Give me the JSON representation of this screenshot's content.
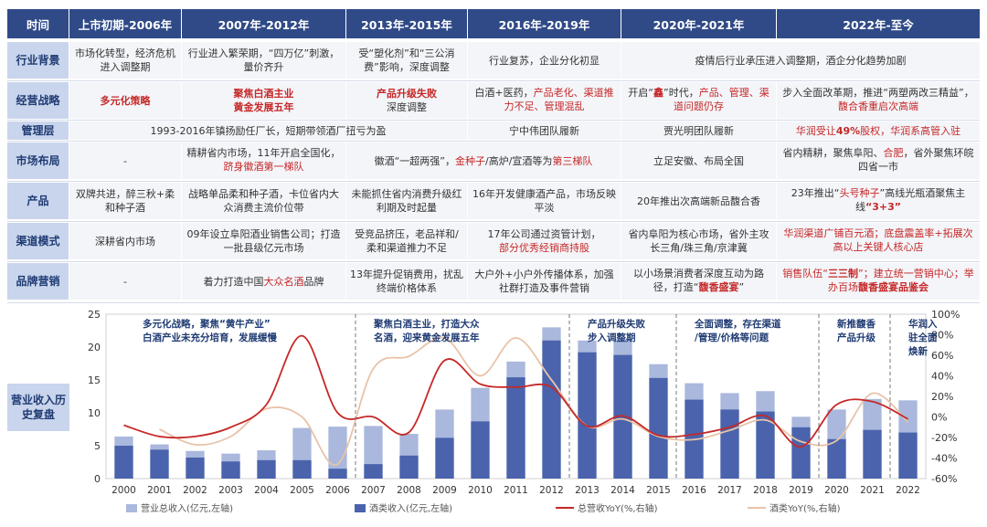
{
  "header": [
    "时间",
    "上市初期-2006年",
    "2007年-2012年",
    "2013年-2015年",
    "2016年-2019年",
    "2020年-2021年",
    "2022年-至今"
  ],
  "rows": {
    "industry": {
      "label": "行业背景",
      "c1": "市场化转型，经济危机进入调整期",
      "c2": "行业进入繁荣期，“四万亿”刺激，量价齐升",
      "c3": "受“塑化剂”和“三公消费”影响，深度调整",
      "c4": "行业复苏，企业分化初显",
      "c5": "疫情后行业承压进入调整期，酒企分化趋势加剧"
    },
    "strategy": {
      "label": "经营战略",
      "c1": "多元化策略",
      "c2a": "聚焦白酒主业",
      "c2b": "黄金发展五年",
      "c3a": "产品升级失败",
      "c3b": "深度调整",
      "c4a": "白酒+医药，",
      "c4b": "产品老化、渠道推力不足、",
      "c4c": "管理混乱",
      "c5a": "开启“",
      "c5b": "鑫",
      "c5c": "”时代，",
      "c5d": "产品、管理、渠道问题仍存",
      "c6a": "步入全面改革期，推进“两塑两改三精益”，",
      "c6b": "馥合香重启次高端"
    },
    "management": {
      "label": "管理层",
      "c1": "1993-2016年镇扬励任厂长，短期带领酒厂扭亏为盈",
      "c3": "宁中伟团队履新",
      "c4": "贾光明团队履新",
      "c5a": "华润受让",
      "c5b": "49%",
      "c5c": "股权，华润系高管入驻"
    },
    "market": {
      "label": "市场布局",
      "c1": "-",
      "c2a": "精耕省内市场，11年开启全国化，",
      "c2b": "跻身徽酒第一梯队",
      "c3a": "徽酒“一超两强”，",
      "c3b": "金种子",
      "c3c": "/高炉/宣酒等为",
      "c3d": "第三梯队",
      "c4": "立足安徽、布局全国",
      "c5a": "省内精耕，聚焦阜阳、",
      "c5b": "合肥",
      "c5c": "，省外聚焦环皖四省一市"
    },
    "product": {
      "label": "产品",
      "c1": "双牌共进，醉三秋+柔和种子酒",
      "c2": "战略单品柔和种子酒，卡位省内大众消费主流价位带",
      "c3": "未能抓住省内消费升级红利期及时起量",
      "c4": "16年开发健康酒产品，市场反映平淡",
      "c5": "20年推出次高端新品馥合香",
      "c6a": "23年推出“",
      "c6b": "头号种子",
      "c6c": "”高线光瓶酒聚焦主线",
      "c6d": "“3+3”"
    },
    "channel": {
      "label": "渠道模式",
      "c1": "深耕省内市场",
      "c2": "09年设立阜阳酒业销售公司；打造一批县级亿元市场",
      "c3": "受竞品挤压，老品祥和/柔和渠道推力不足",
      "c4a": "17年公司通过资管计划，",
      "c4b": "部分优秀经销商持股",
      "c5": "省内阜阳为核心市场，省外主攻长三角/珠三角/京津冀",
      "c6a": "华润渠道广铺百元酒；",
      "c6b": "底盘震盖率+",
      "c6c": "拓展次高以上关键人核心店"
    },
    "brand": {
      "label": "品牌营销",
      "c1": "-",
      "c2a": "着力打造中国",
      "c2b": "大众名酒",
      "c2c": "品牌",
      "c3": "13年提升促销费用，扰乱终端价格体系",
      "c4": "大户外+小户外传播体系，加强社群打造及事件营销",
      "c5a": "以小场景消费者深度互动为路径，打造“",
      "c5b": "馥香盛宴",
      "c5c": "”",
      "c6a": "销售队伍“",
      "c6b": "三三制",
      "c6c": "”；建立统一营销中心；举办百场",
      "c6d": "馥香盛宴品鉴会"
    }
  },
  "chart_label": "营业收入历史复盘",
  "chart_data": {
    "type": "bar",
    "categories": [
      "2000",
      "2001",
      "2002",
      "2003",
      "2004",
      "2005",
      "2006",
      "2007",
      "2008",
      "2009",
      "2010",
      "2011",
      "2012",
      "2013",
      "2014",
      "2015",
      "2016",
      "2017",
      "2018",
      "2019",
      "2020",
      "2021",
      "2022"
    ],
    "series": [
      {
        "name": "营业总收入(亿元,左轴)",
        "axis": "left",
        "color": "#a9b8dc",
        "values": [
          6.4,
          5.2,
          4.2,
          3.8,
          4.3,
          7.7,
          7.9,
          8.0,
          6.8,
          10.5,
          13.8,
          17.8,
          23.0,
          21.0,
          21.2,
          17.4,
          14.5,
          13.0,
          13.3,
          9.4,
          10.5,
          12.1,
          11.9
        ]
      },
      {
        "name": "酒类收入(亿元,左轴)",
        "axis": "left",
        "color": "#4a63ac",
        "values": [
          5.0,
          4.4,
          3.2,
          2.6,
          2.8,
          2.8,
          1.5,
          2.2,
          3.5,
          6.2,
          8.7,
          15.4,
          21.0,
          19.2,
          18.8,
          15.3,
          12.0,
          10.5,
          10.2,
          7.8,
          6.0,
          7.4,
          7.0
        ]
      },
      {
        "name": "总营收YoY(%,右轴)",
        "axis": "right",
        "color": "#c62828",
        "values": [
          -8,
          -19,
          -19,
          -10,
          12,
          79,
          4,
          0,
          -15,
          55,
          32,
          29,
          29,
          -9,
          1,
          -18,
          -17,
          -10,
          1,
          -29,
          12,
          15,
          -2
        ]
      },
      {
        "name": "酒类YoY(%,右轴)",
        "axis": "right",
        "color": "#e8c3a9",
        "values": [
          null,
          -12,
          -27,
          -19,
          8,
          0,
          -46,
          47,
          59,
          77,
          40,
          77,
          36,
          -9,
          -2,
          -19,
          -22,
          -13,
          -3,
          -24,
          -23,
          23,
          -5
        ]
      }
    ],
    "left_axis": {
      "min": 0,
      "max": 25,
      "ticks": [
        0,
        5,
        10,
        15,
        20,
        25
      ]
    },
    "right_axis": {
      "min": -60,
      "max": 100,
      "ticks": [
        "-60%",
        "-40%",
        "-20%",
        "0%",
        "20%",
        "40%",
        "60%",
        "80%",
        "100%"
      ]
    },
    "period_dividers_after": [
      "2006",
      "2012",
      "2015",
      "2019",
      "2021"
    ],
    "annotations": [
      {
        "lines": [
          "多元化战略，聚焦“黄牛产业”",
          "白酒产业未充分培育，发展缓慢"
        ],
        "start": "2000"
      },
      {
        "lines": [
          "聚焦白酒主业，打造大众",
          "名酒，迎来黄金发展五年"
        ],
        "start": "2007"
      },
      {
        "lines": [
          "产品升级失败",
          "步入调整期"
        ],
        "start": "2013"
      },
      {
        "lines": [
          "全面调整，存在渠道",
          "/管理/价格等问题"
        ],
        "start": "2016"
      },
      {
        "lines": [
          "新推馥香",
          "产品升级"
        ],
        "start": "2020"
      },
      {
        "lines": [
          "华润入",
          "驻全面",
          "焕新"
        ],
        "start": "2022"
      }
    ],
    "legend": [
      "营业总收入(亿元,左轴)",
      "酒类收入(亿元,左轴)",
      "总营收YoY(%,右轴)",
      "酒类YoY(%,右轴)"
    ]
  }
}
